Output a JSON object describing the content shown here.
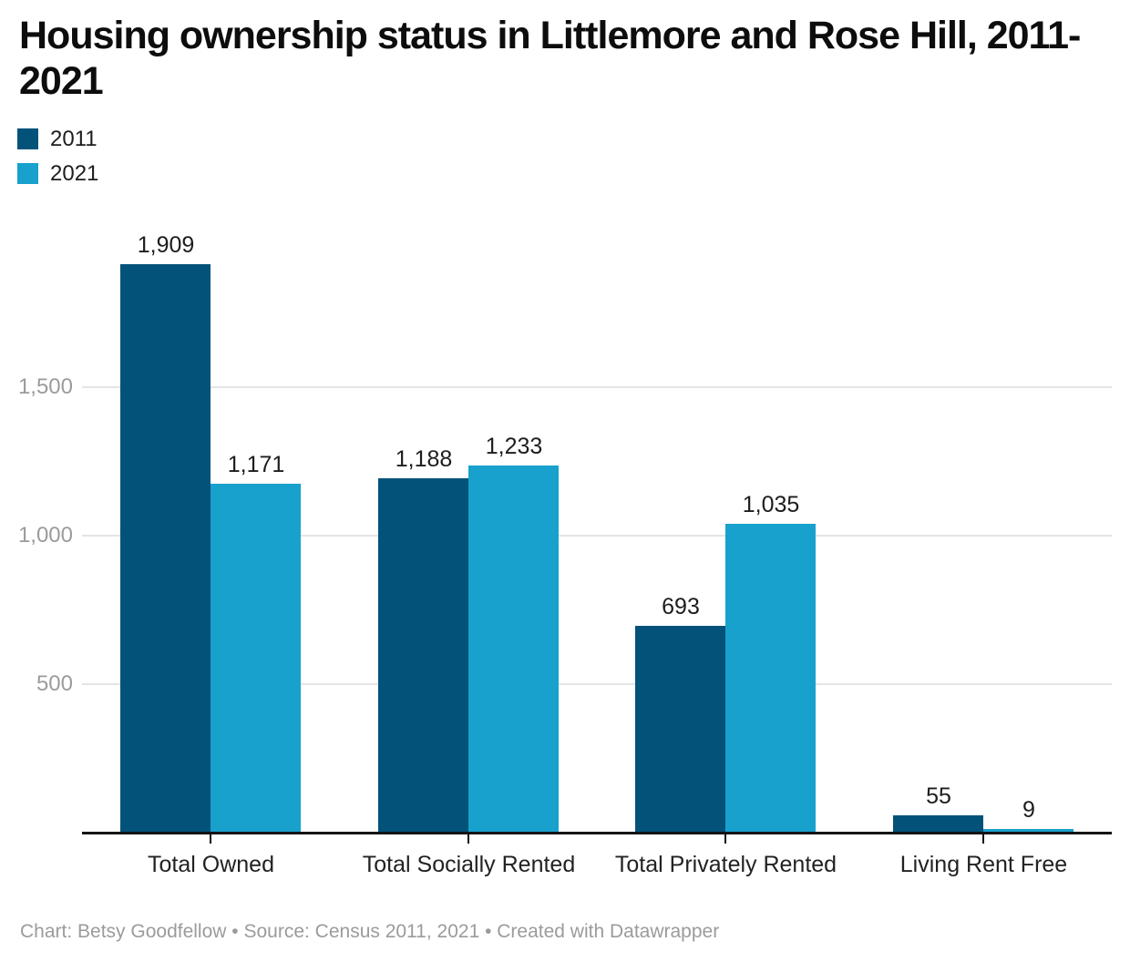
{
  "title": "Housing ownership status in Littlemore and Rose Hill, 2011-2021",
  "footer": "Chart: Betsy Goodfellow • Source: Census 2011, 2021 • Created with Datawrapper",
  "colors": {
    "series_2011": "#03527a",
    "series_2021": "#18a1cd",
    "axis_line": "#151515",
    "gridline": "#e4e4e4",
    "axis_tick_label": "#9b9b9b",
    "text": "#1d1d1d",
    "background": "#ffffff"
  },
  "chart_data": {
    "type": "bar",
    "title": "Housing ownership status in Littlemore and Rose Hill, 2011-2021",
    "categories": [
      "Total Owned",
      "Total Socially Rented",
      "Total Privately Rented",
      "Living Rent Free"
    ],
    "series": [
      {
        "name": "2011",
        "color": "#03527a",
        "values": [
          1909,
          1188,
          693,
          55
        ],
        "labels": [
          "1,909",
          "1,188",
          "693",
          "55"
        ]
      },
      {
        "name": "2021",
        "color": "#18a1cd",
        "values": [
          1171,
          1233,
          1035,
          9
        ],
        "labels": [
          "1,171",
          "1,233",
          "1,035",
          "9"
        ]
      }
    ],
    "yticks": [
      {
        "value": 500,
        "label": "500"
      },
      {
        "value": 1000,
        "label": "1,000"
      },
      {
        "value": 1500,
        "label": "1,500"
      }
    ],
    "ylim": [
      0,
      1950
    ],
    "grid": true,
    "value_labels_shown": true,
    "legend_position": "top-left",
    "xlabel": "",
    "ylabel": ""
  }
}
